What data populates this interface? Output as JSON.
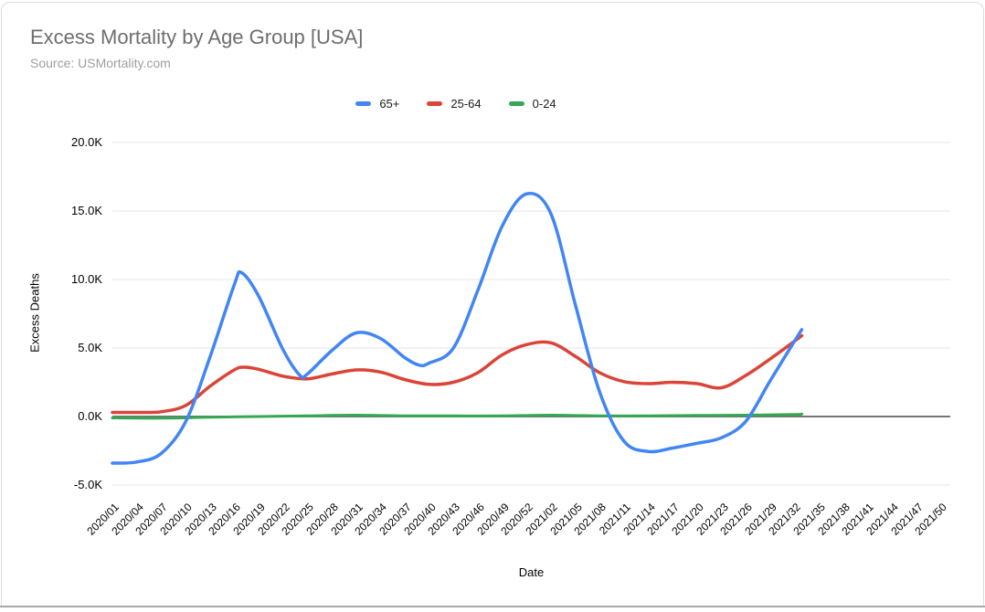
{
  "header": {
    "title": "Excess Mortality by Age Group [USA]",
    "subtitle": "Source: USMortality.com"
  },
  "chart_data": {
    "type": "line",
    "title": "Excess Mortality by Age Group [USA]",
    "subtitle": "Source: USMortality.com",
    "xlabel": "Date",
    "ylabel": "Excess Deaths",
    "legend_position": "top",
    "grid": true,
    "ylim": [
      -5,
      20
    ],
    "y_ticks": [
      {
        "label": "20.0K",
        "value": 20
      },
      {
        "label": "15.0K",
        "value": 15
      },
      {
        "label": "10.0K",
        "value": 10
      },
      {
        "label": "5.0K",
        "value": 5
      },
      {
        "label": "0.0K",
        "value": 0
      },
      {
        "label": "-5.0K",
        "value": -5
      }
    ],
    "x_ticks": [
      "2020/01",
      "2020/04",
      "2020/07",
      "2020/10",
      "2020/13",
      "2020/16",
      "2020/19",
      "2020/22",
      "2020/25",
      "2020/28",
      "2020/31",
      "2020/34",
      "2020/37",
      "2020/40",
      "2020/43",
      "2020/46",
      "2020/49",
      "2020/52",
      "2021/02",
      "2021/05",
      "2021/08",
      "2021/11",
      "2021/14",
      "2021/17",
      "2021/20",
      "2021/23",
      "2021/26",
      "2021/29",
      "2021/32",
      "2021/35",
      "2021/38",
      "2021/41",
      "2021/44",
      "2021/47",
      "2021/50"
    ],
    "value_unit": "K",
    "series": [
      {
        "name": "65+",
        "color": "#4285f4",
        "points": [
          [
            0,
            -3.4
          ],
          [
            1,
            -3.32
          ],
          [
            2,
            -2.7
          ],
          [
            3,
            -0.4
          ],
          [
            4,
            4.3
          ],
          [
            5,
            9.6
          ],
          [
            5.3,
            10.5
          ],
          [
            6,
            8.8
          ],
          [
            7,
            4.9
          ],
          [
            7.7,
            3.0
          ],
          [
            8,
            3.1
          ],
          [
            9,
            4.8
          ],
          [
            10,
            6.1
          ],
          [
            11,
            5.7
          ],
          [
            12,
            4.3
          ],
          [
            12.6,
            3.75
          ],
          [
            13,
            3.9
          ],
          [
            14,
            5.0
          ],
          [
            15,
            9.2
          ],
          [
            16,
            13.9
          ],
          [
            17,
            16.25
          ],
          [
            18,
            14.8
          ],
          [
            19,
            8.2
          ],
          [
            20,
            1.8
          ],
          [
            21,
            -1.8
          ],
          [
            22,
            -2.55
          ],
          [
            23,
            -2.3
          ],
          [
            24,
            -1.95
          ],
          [
            25,
            -1.55
          ],
          [
            26,
            -0.35
          ],
          [
            27,
            2.6
          ],
          [
            28,
            5.5
          ],
          [
            28.3,
            6.35
          ]
        ]
      },
      {
        "name": "25-64",
        "color": "#db4437",
        "points": [
          [
            0,
            0.3
          ],
          [
            1,
            0.3
          ],
          [
            2,
            0.35
          ],
          [
            3,
            0.8
          ],
          [
            4,
            2.2
          ],
          [
            5,
            3.4
          ],
          [
            5.4,
            3.6
          ],
          [
            6,
            3.45
          ],
          [
            7,
            2.95
          ],
          [
            8,
            2.75
          ],
          [
            9,
            3.1
          ],
          [
            10,
            3.4
          ],
          [
            11,
            3.25
          ],
          [
            12,
            2.7
          ],
          [
            13,
            2.35
          ],
          [
            14,
            2.5
          ],
          [
            15,
            3.2
          ],
          [
            16,
            4.5
          ],
          [
            17,
            5.25
          ],
          [
            18,
            5.38
          ],
          [
            19,
            4.4
          ],
          [
            20,
            3.2
          ],
          [
            21,
            2.55
          ],
          [
            22,
            2.4
          ],
          [
            23,
            2.5
          ],
          [
            24,
            2.4
          ],
          [
            25,
            2.1
          ],
          [
            26,
            3.0
          ],
          [
            27,
            4.2
          ],
          [
            28,
            5.5
          ],
          [
            28.3,
            5.9
          ]
        ]
      },
      {
        "name": "0-24",
        "color": "#34a853",
        "points": [
          [
            0,
            -0.1
          ],
          [
            2,
            -0.12
          ],
          [
            4,
            -0.05
          ],
          [
            6,
            0.0
          ],
          [
            8,
            0.05
          ],
          [
            10,
            0.1
          ],
          [
            12,
            0.05
          ],
          [
            14,
            0.05
          ],
          [
            16,
            0.05
          ],
          [
            18,
            0.1
          ],
          [
            20,
            0.05
          ],
          [
            22,
            0.05
          ],
          [
            24,
            0.08
          ],
          [
            26,
            0.1
          ],
          [
            28,
            0.15
          ],
          [
            28.3,
            0.18
          ]
        ]
      }
    ],
    "colors": {
      "grid": "#e6e6e6",
      "zero_baseline": "#757575",
      "tick_text": "#000000",
      "title_text": "#6e6e6e",
      "subtitle_text": "#9e9e9e"
    }
  }
}
